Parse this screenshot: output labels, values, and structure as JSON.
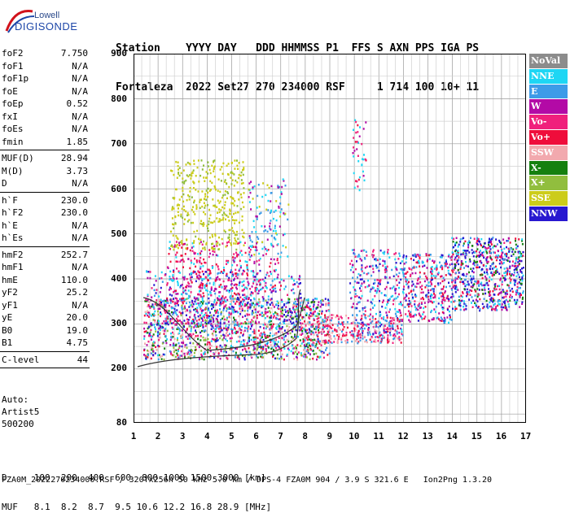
{
  "logo": {
    "line1": "Lowell",
    "line2": "DIGISONDE"
  },
  "header": {
    "cols": [
      "Station",
      "YYYY DAY",
      "DDD",
      "HHMMSS",
      "P1",
      "FFS",
      "S",
      "AXN",
      "PPS",
      "IGA",
      "PS"
    ],
    "line1": "Station    YYYY DAY   DDD HHMMSS P1  FFS S AXN PPS IGA PS",
    "line2": "Fortaleza  2022 Set27 270 234000 RSF     1 714 100 10+ 11"
  },
  "params": [
    [
      {
        "label": "foF2",
        "value": "7.750"
      },
      {
        "label": "foF1",
        "value": "N/A"
      },
      {
        "label": "foF1p",
        "value": "N/A"
      },
      {
        "label": "foE",
        "value": "N/A"
      },
      {
        "label": "foEp",
        "value": "0.52"
      },
      {
        "label": "fxI",
        "value": "N/A"
      },
      {
        "label": "foEs",
        "value": "N/A"
      },
      {
        "label": "fmin",
        "value": "1.85"
      }
    ],
    [
      {
        "label": "MUF(D)",
        "value": "28.94"
      },
      {
        "label": "M(D)",
        "value": "3.73"
      },
      {
        "label": "D",
        "value": "N/A"
      }
    ],
    [
      {
        "label": "h`F",
        "value": "230.0"
      },
      {
        "label": "h`F2",
        "value": "230.0"
      },
      {
        "label": "h`E",
        "value": "N/A"
      },
      {
        "label": "h`Es",
        "value": "N/A"
      }
    ],
    [
      {
        "label": "hmF2",
        "value": "252.7"
      },
      {
        "label": "hmF1",
        "value": "N/A"
      },
      {
        "label": "hmE",
        "value": "110.0"
      },
      {
        "label": "yF2",
        "value": "25.2"
      },
      {
        "label": "yF1",
        "value": "N/A"
      },
      {
        "label": "yE",
        "value": "20.0"
      },
      {
        "label": "B0",
        "value": "19.0"
      },
      {
        "label": "B1",
        "value": "4.75"
      }
    ],
    [
      {
        "label": "C-level",
        "value": "44"
      }
    ]
  ],
  "auto": {
    "l1": "Auto:",
    "l2": "Artist5",
    "l3": "500200"
  },
  "legend": [
    {
      "label": "NoVal",
      "color": "#8c8c8c"
    },
    {
      "label": "NNE",
      "color": "#1ed6f4"
    },
    {
      "label": "E",
      "color": "#3d9be8"
    },
    {
      "label": "W",
      "color": "#b30aa6"
    },
    {
      "label": "Vo-",
      "color": "#f0207c"
    },
    {
      "label": "Vo+",
      "color": "#ef0d3b"
    },
    {
      "label": "SSW",
      "color": "#f2a9ae"
    },
    {
      "label": "X-",
      "color": "#15800f"
    },
    {
      "label": "X+",
      "color": "#91be3e"
    },
    {
      "label": "SSE",
      "color": "#cccc1a"
    },
    {
      "label": "NNW",
      "color": "#2818d0"
    }
  ],
  "axes": {
    "y_ticks": [
      "900",
      "800",
      "700",
      "600",
      "500",
      "400",
      "300",
      "200",
      "80"
    ],
    "x_ticks": [
      "1",
      "2",
      "3",
      "4",
      "5",
      "6",
      "7",
      "8",
      "9",
      "10",
      "11",
      "12",
      "13",
      "14",
      "15",
      "16",
      "17"
    ]
  },
  "footer": {
    "line1": "D     100  200  400  600  800 1000 1500 3000 [km]",
    "line2": "MUF   8.1  8.2  8.7  9.5 10.6 12.2 16.8 28.9 [MHz]",
    "fname": "FZA0M_2022270234000.RSF / 320fx256h 50 kHz 5.0 km / DPS-4 FZA0M 904 / 3.9 S 321.6 E   Ion2Png 1.3.20"
  }
}
